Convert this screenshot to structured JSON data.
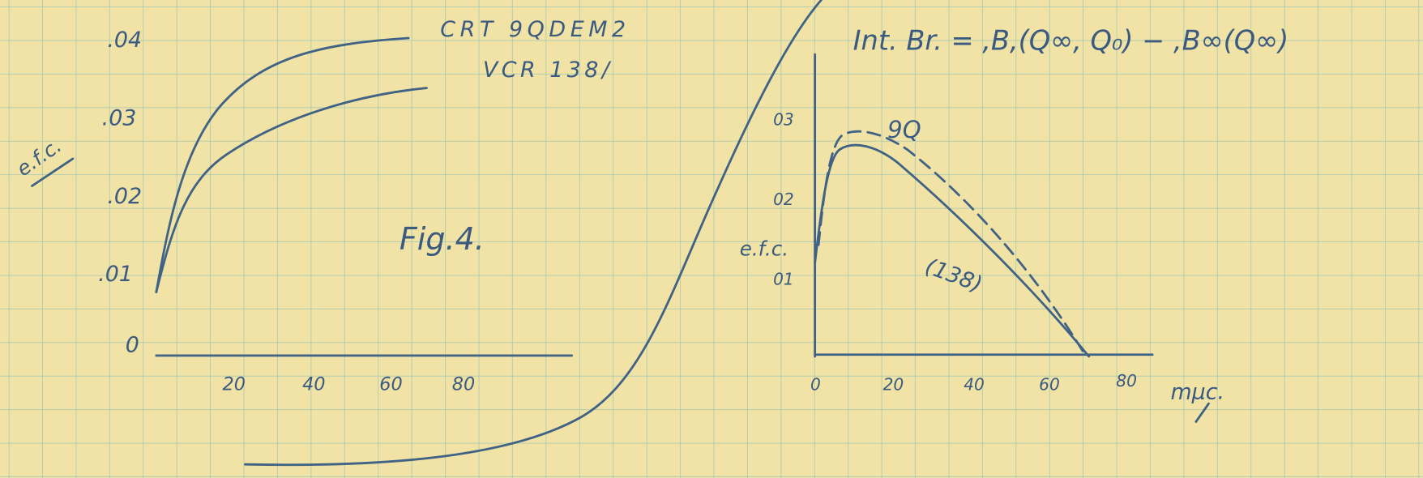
{
  "left_chart": {
    "y_ticks": [
      ".04",
      ".03",
      ".02",
      ".01",
      "0"
    ],
    "y_label": "e.f.c.",
    "curve_labels": [
      "CRT 9QDEM2",
      "VCR 138/"
    ],
    "caption": "Fig.4.",
    "x_ticks": [
      "20",
      "40",
      "60",
      "80"
    ]
  },
  "right_chart": {
    "formula": "Int. Br. = ,B,(Q∞, Q₀) − ,B∞(Q∞)",
    "y_ticks": [
      "03",
      "02",
      "01"
    ],
    "y_label": "e.f.c.",
    "curve_labels": [
      "9Q",
      "(138)"
    ],
    "x_ticks": [
      "0",
      "20",
      "40",
      "60",
      "80"
    ],
    "x_unit": "mμc."
  }
}
